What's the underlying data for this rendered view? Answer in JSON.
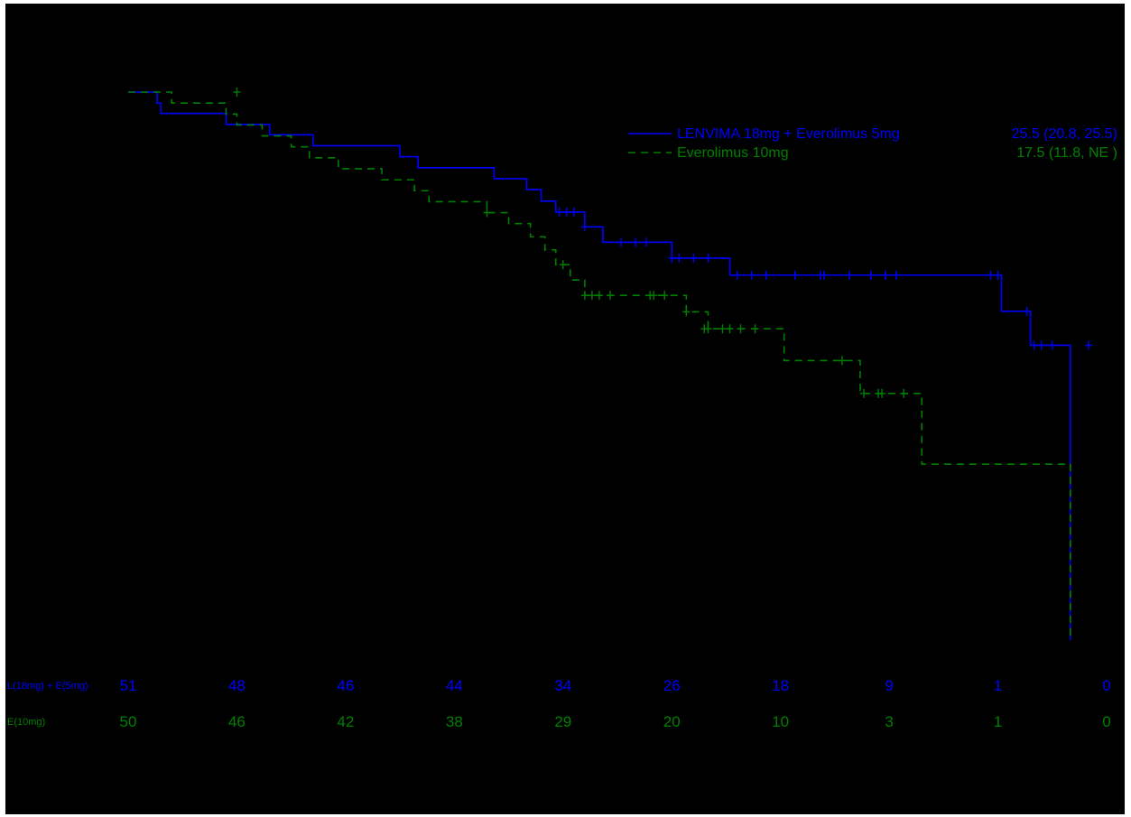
{
  "colors": {
    "background": "#000000",
    "lenvima": "#0000ff",
    "everolimus": "#008000"
  },
  "legend": {
    "entries": [
      {
        "label": "LENVIMA 18mg + Everolimus 5mg",
        "stat": "25.5 (20.8, 25.5)",
        "style": "solid"
      },
      {
        "label": "Everolimus 10mg",
        "stat": "17.5 (11.8,  NE )",
        "style": "dashed"
      }
    ]
  },
  "risk_table": {
    "rows": [
      {
        "label": "L(18mg) + E(5mg)",
        "counts": [
          "51",
          "48",
          "46",
          "44",
          "34",
          "26",
          "18",
          "9",
          "1",
          "0"
        ]
      },
      {
        "label": "E(10mg)",
        "counts": [
          "50",
          "46",
          "42",
          "38",
          "29",
          "20",
          "10",
          "3",
          "1",
          "0"
        ]
      }
    ]
  },
  "chart_data": {
    "type": "line",
    "subtype": "kaplan-meier step",
    "title": "",
    "xlabel": "",
    "ylabel": "",
    "xlim": [
      0,
      27
    ],
    "ylim": [
      0,
      1
    ],
    "x_ticks": [
      0,
      3,
      6,
      9,
      12,
      15,
      18,
      21,
      24,
      27
    ],
    "grid": false,
    "legend_position": "top-right",
    "series": [
      {
        "name": "LENVIMA 18mg + Everolimus 5mg",
        "color": "#0000ff",
        "style": "solid",
        "steps": [
          [
            0,
            1.0
          ],
          [
            0.8,
            0.98
          ],
          [
            0.9,
            0.961
          ],
          [
            2.7,
            0.941
          ],
          [
            3.9,
            0.922
          ],
          [
            5.1,
            0.902
          ],
          [
            7.5,
            0.882
          ],
          [
            8.0,
            0.862
          ],
          [
            10.1,
            0.842
          ],
          [
            11.0,
            0.822
          ],
          [
            11.4,
            0.801
          ],
          [
            11.8,
            0.781
          ],
          [
            12.6,
            0.754
          ],
          [
            13.1,
            0.726
          ],
          [
            15.0,
            0.697
          ],
          [
            16.6,
            0.666
          ],
          [
            24.1,
            0.6
          ],
          [
            24.9,
            0.538
          ],
          [
            26.0,
            0.0
          ]
        ],
        "censored": [
          [
            11.9,
            0.781
          ],
          [
            12.1,
            0.781
          ],
          [
            12.3,
            0.781
          ],
          [
            12.6,
            0.754
          ],
          [
            13.6,
            0.726
          ],
          [
            14.0,
            0.726
          ],
          [
            14.3,
            0.726
          ],
          [
            15.0,
            0.697
          ],
          [
            15.2,
            0.697
          ],
          [
            15.6,
            0.697
          ],
          [
            16.0,
            0.697
          ],
          [
            16.8,
            0.666
          ],
          [
            17.2,
            0.666
          ],
          [
            17.6,
            0.666
          ],
          [
            18.4,
            0.666
          ],
          [
            19.1,
            0.666
          ],
          [
            19.2,
            0.666
          ],
          [
            19.9,
            0.666
          ],
          [
            20.5,
            0.666
          ],
          [
            20.9,
            0.666
          ],
          [
            21.2,
            0.666
          ],
          [
            23.8,
            0.666
          ],
          [
            24.0,
            0.666
          ],
          [
            24.8,
            0.6
          ],
          [
            25.0,
            0.538
          ],
          [
            25.2,
            0.538
          ],
          [
            25.5,
            0.538
          ],
          [
            26.5,
            0.538
          ]
        ]
      },
      {
        "name": "Everolimus 10mg",
        "color": "#008000",
        "style": "dashed",
        "steps": [
          [
            0,
            1.0
          ],
          [
            1.2,
            0.98
          ],
          [
            2.7,
            0.96
          ],
          [
            3.0,
            0.94
          ],
          [
            3.7,
            0.92
          ],
          [
            4.5,
            0.9
          ],
          [
            5.0,
            0.88
          ],
          [
            5.8,
            0.86
          ],
          [
            7.0,
            0.84
          ],
          [
            7.9,
            0.82
          ],
          [
            8.3,
            0.8
          ],
          [
            9.9,
            0.78
          ],
          [
            10.5,
            0.76
          ],
          [
            11.1,
            0.736
          ],
          [
            11.5,
            0.712
          ],
          [
            11.8,
            0.685
          ],
          [
            12.2,
            0.657
          ],
          [
            12.6,
            0.629
          ],
          [
            15.4,
            0.599
          ],
          [
            16.0,
            0.568
          ],
          [
            18.1,
            0.51
          ],
          [
            20.2,
            0.45
          ],
          [
            21.9,
            0.321
          ],
          [
            26.0,
            0.0
          ]
        ],
        "censored": [
          [
            3.0,
            1.0
          ],
          [
            9.9,
            0.78
          ],
          [
            12.0,
            0.685
          ],
          [
            12.6,
            0.629
          ],
          [
            12.8,
            0.629
          ],
          [
            13.0,
            0.629
          ],
          [
            13.3,
            0.629
          ],
          [
            14.4,
            0.629
          ],
          [
            14.5,
            0.629
          ],
          [
            14.8,
            0.629
          ],
          [
            15.4,
            0.599
          ],
          [
            15.9,
            0.568
          ],
          [
            16.0,
            0.568
          ],
          [
            16.4,
            0.568
          ],
          [
            16.6,
            0.568
          ],
          [
            16.9,
            0.568
          ],
          [
            17.3,
            0.568
          ],
          [
            19.7,
            0.51
          ],
          [
            20.3,
            0.45
          ],
          [
            20.7,
            0.45
          ],
          [
            20.8,
            0.45
          ],
          [
            21.4,
            0.45
          ]
        ]
      }
    ]
  }
}
